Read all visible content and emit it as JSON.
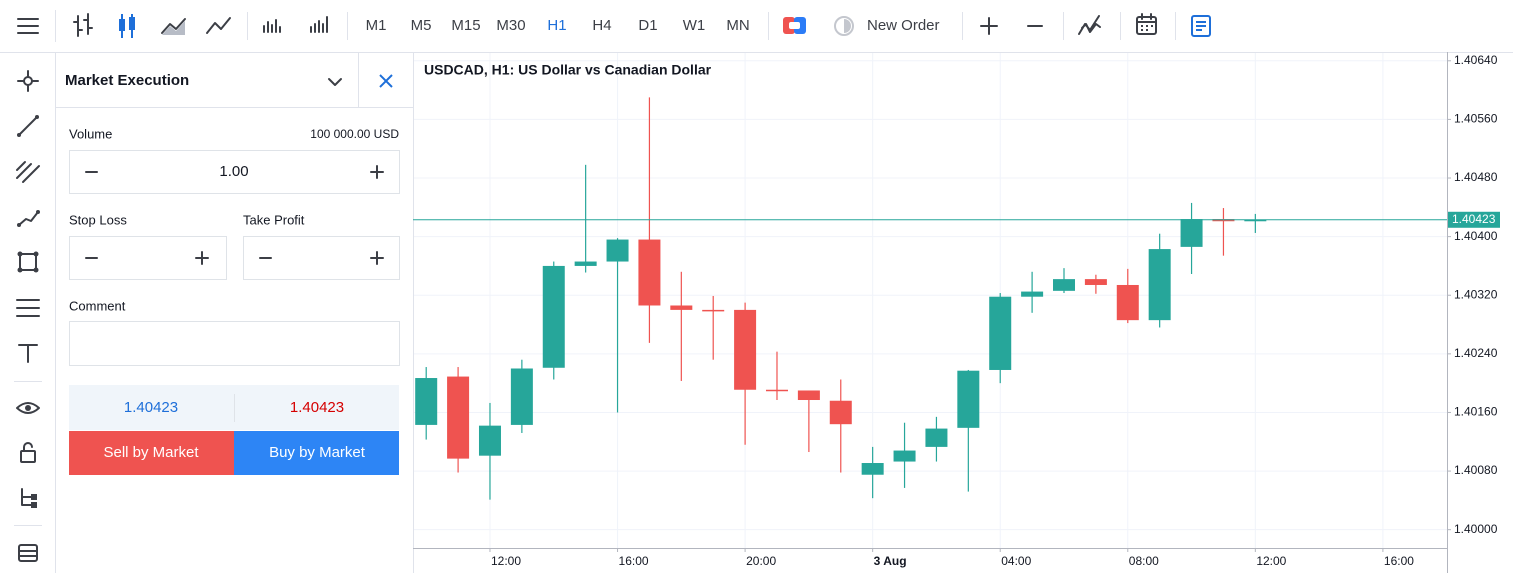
{
  "toolbar": {
    "timeframes": [
      "M1",
      "M5",
      "M15",
      "M30",
      "H1",
      "H4",
      "D1",
      "W1",
      "MN"
    ],
    "active_timeframe": "H1",
    "new_order": "New Order"
  },
  "order_panel": {
    "title": "Market Execution",
    "volume_label": "Volume",
    "volume_amount": "100 000.00 USD",
    "volume": "1.00",
    "stop_loss": "Stop Loss",
    "take_profit": "Take Profit",
    "comment": "Comment",
    "bid": "1.40423",
    "ask": "1.40423",
    "sell": "Sell by Market",
    "buy": "Buy by Market"
  },
  "chart_data": {
    "type": "candlestick",
    "title": "USDCAD, H1: US Dollar vs Canadian Dollar",
    "categories": [
      null,
      null,
      "12:00",
      null,
      null,
      null,
      "16:00",
      null,
      null,
      null,
      "20:00",
      null,
      null,
      null,
      "3 Aug",
      null,
      null,
      null,
      "04:00",
      null,
      null,
      null,
      "08:00",
      null,
      null,
      null,
      "12:00",
      null,
      null,
      null,
      "16:00"
    ],
    "open": [
      1.40143,
      1.40209,
      1.40101,
      1.40143,
      1.40221,
      1.4036,
      1.40366,
      1.40396,
      1.40306,
      1.403,
      1.403,
      1.40191,
      1.4019,
      1.40176,
      1.40075,
      1.40093,
      1.40113,
      1.40139,
      1.40218,
      1.40318,
      1.40326,
      1.40342,
      1.40334,
      1.40286,
      1.40386,
      1.40424,
      1.40421,
      null,
      null,
      null,
      null
    ],
    "high": [
      1.40222,
      1.40222,
      1.40173,
      1.40232,
      1.40366,
      1.40498,
      1.40398,
      1.4059,
      1.40352,
      1.40319,
      1.4031,
      1.40243,
      1.4019,
      1.40205,
      1.40113,
      1.40146,
      1.40154,
      1.40218,
      1.40323,
      1.40352,
      1.40357,
      1.40348,
      1.40356,
      1.40404,
      1.40446,
      1.40439,
      1.40431,
      null,
      null,
      null,
      null
    ],
    "low": [
      1.40123,
      1.40078,
      1.40041,
      1.40132,
      1.40205,
      1.40351,
      1.4016,
      1.40255,
      1.40203,
      1.40232,
      1.40116,
      1.40177,
      1.40106,
      1.40078,
      1.40043,
      1.40057,
      1.40093,
      1.40052,
      1.402,
      1.40296,
      1.40323,
      1.40322,
      1.40282,
      1.40276,
      1.40349,
      1.40374,
      1.40405,
      null,
      null,
      null,
      null
    ],
    "close": [
      1.40207,
      1.40097,
      1.40142,
      1.4022,
      1.4036,
      1.40366,
      1.40396,
      1.40306,
      1.403,
      1.40299,
      1.40191,
      1.4019,
      1.40177,
      1.40144,
      1.40091,
      1.40108,
      1.40138,
      1.40217,
      1.40318,
      1.40325,
      1.40342,
      1.40334,
      1.40286,
      1.40383,
      1.40424,
      1.40421,
      1.40423,
      null,
      null,
      null,
      null
    ],
    "up_color": "#26a69a",
    "down_color": "#ef5350",
    "ylim": [
      1.39975,
      1.40652
    ],
    "yticks": [
      {
        "value": 1.4,
        "label": "1.40000"
      },
      {
        "value": 1.4008,
        "label": "1.40080"
      },
      {
        "value": 1.4016,
        "label": "1.40160"
      },
      {
        "value": 1.4024,
        "label": "1.40240"
      },
      {
        "value": 1.4032,
        "label": "1.40320"
      },
      {
        "value": 1.404,
        "label": "1.40400"
      },
      {
        "value": 1.4048,
        "label": "1.40480"
      },
      {
        "value": 1.4056,
        "label": "1.40560"
      },
      {
        "value": 1.4064,
        "label": "1.40640"
      }
    ],
    "last_price": 1.40423,
    "grid": true
  }
}
